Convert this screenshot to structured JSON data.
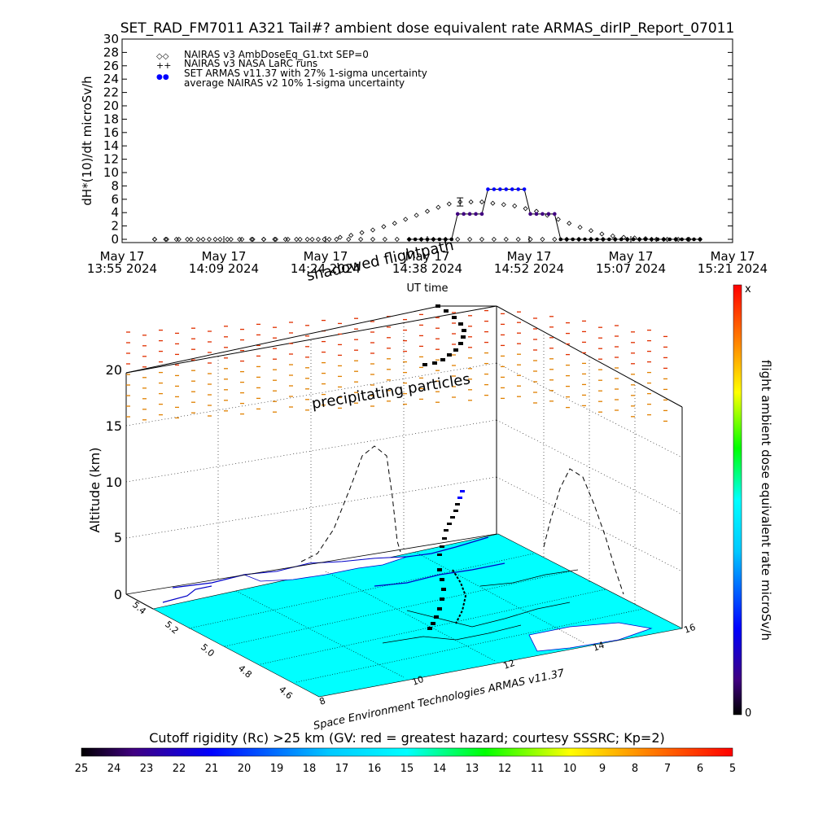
{
  "colors": {
    "background": "#ffffff",
    "ink": "#000000",
    "measured": "#0000ff",
    "measured_fill": "#400080",
    "ocean": "#00ffff",
    "precip_high": "#e03000",
    "precip_low": "#e08000"
  },
  "chart_data": [
    {
      "type": "scatter",
      "title": "SET_RAD_FM7011  A321 Tail#? ambient dose equivalent rate ARMAS_dirIP_Report_07011",
      "ylabel": "dH*(10)/dt microSv/h",
      "ylim": [
        0,
        30
      ],
      "y_ticks": [
        "0",
        "2",
        "4",
        "6",
        "8",
        "10",
        "12",
        "14",
        "16",
        "18",
        "20",
        "22",
        "24",
        "26",
        "28",
        "30"
      ],
      "x_tick_labels": [
        {
          "top": "May 17",
          "bottom": "13:55 2024"
        },
        {
          "top": "May 17",
          "bottom": "14:09 2024"
        },
        {
          "top": "May 17",
          "bottom": "14:24 2024"
        },
        {
          "top": "May 17",
          "bottom": "14:38 2024"
        },
        {
          "top": "May 17",
          "bottom": "14:52 2024"
        },
        {
          "top": "May 17",
          "bottom": "15:07 2024"
        },
        {
          "top": "May 17",
          "bottom": "15:21 2024"
        }
      ],
      "xlabel": "UT time",
      "legend": [
        {
          "symbol": "◇◇",
          "label": "NAIRAS v3 AmbDoseEq_G1.txt SEP=0"
        },
        {
          "symbol": "++",
          "label": "NAIRAS v3 NASA LaRC runs"
        },
        {
          "symbol": "●●",
          "label": "SET ARMAS v11.37 with 27% 1-sigma uncertainty"
        },
        {
          "symbol": "",
          "label": "average NAIRAS v2 10% 1-sigma uncertainty"
        }
      ],
      "legend_position": "top-left",
      "series": [
        {
          "name": "NAIRAS v3 AmbDoseEq_G1.txt SEP=0",
          "x": [
            0,
            2,
            4,
            6,
            8,
            10,
            12,
            14,
            16,
            18,
            20,
            22,
            24,
            26,
            28,
            30,
            32,
            34,
            36,
            38,
            40,
            42,
            44,
            46,
            48,
            50,
            52,
            54,
            56,
            58,
            60,
            62,
            64,
            66,
            68,
            70,
            72,
            74,
            76,
            78,
            80,
            82,
            84,
            86,
            88,
            90
          ],
          "y": [
            0,
            0,
            0,
            0,
            0,
            0,
            0,
            0,
            0,
            0,
            0,
            0,
            0,
            0,
            0,
            0,
            0,
            0,
            0,
            0,
            0,
            0,
            0,
            0,
            0,
            0,
            0,
            0,
            0,
            0,
            0,
            0,
            0,
            0,
            0,
            0,
            0,
            0,
            0,
            0,
            0,
            0,
            0,
            0,
            0,
            0
          ]
        },
        {
          "name": "NAIRAS v3 AmbDoseEq_G1.txt SEP=0",
          "x": [
            0,
            1.8,
            3.6,
            5.4,
            7.2,
            9,
            10.8,
            12.6,
            14.4,
            16.2,
            18,
            19.8,
            21.6,
            23.4,
            25.2,
            27,
            28.8,
            30.6,
            32.4,
            34.2,
            36,
            37.8,
            39.6,
            41.4,
            43.2,
            45,
            46.8,
            48.6,
            50.4,
            52.2,
            54,
            55.8,
            57.6,
            59.4,
            61.2,
            63,
            64.8,
            66.6,
            68.4,
            70.2,
            72,
            73.8,
            75.6,
            77.4,
            79.2,
            81,
            82.8,
            84.6,
            86.4,
            88.2
          ],
          "y": [
            0,
            0,
            0,
            0,
            0,
            0,
            0,
            0,
            0,
            0,
            0,
            0,
            0,
            0,
            0,
            0,
            0,
            0.3,
            0.6,
            1,
            1.4,
            1.9,
            2.4,
            3,
            3.6,
            4.2,
            4.8,
            5.3,
            5.6,
            5.6,
            5.6,
            5.4,
            5.2,
            5,
            4.6,
            4.2,
            3.6,
            3,
            2.4,
            1.8,
            1.3,
            0.8,
            0.5,
            0.3,
            0.2,
            0.1,
            0,
            0,
            0,
            0
          ]
        },
        {
          "name": "SET ARMAS v11.37 with 27% 1-sigma uncertainty",
          "x": [
            42,
            43,
            44,
            45,
            46,
            47,
            48,
            49,
            50,
            51,
            52,
            53,
            54,
            55,
            56,
            57,
            58,
            59,
            60,
            61,
            62,
            63,
            64,
            65,
            66,
            67,
            68,
            69,
            70,
            71,
            72,
            73,
            74,
            75,
            76,
            77,
            78,
            79,
            80,
            81,
            82,
            83,
            84,
            85,
            86,
            87,
            88,
            89,
            90
          ],
          "y": [
            0,
            0,
            0,
            0,
            0,
            0,
            0,
            0,
            3.8,
            3.8,
            3.8,
            3.8,
            3.8,
            7.5,
            7.5,
            7.5,
            7.5,
            7.5,
            7.5,
            7.5,
            3.8,
            3.8,
            3.8,
            3.8,
            3.8,
            0,
            0,
            0,
            0,
            0,
            0,
            0,
            0,
            0,
            0,
            0,
            0,
            0,
            0,
            0,
            0,
            0,
            0,
            0,
            0,
            0,
            0,
            0,
            0
          ]
        }
      ]
    },
    {
      "type": "scatter",
      "title": "",
      "zlabel": "Altitude (km)",
      "z_ticks": [
        "0",
        "5",
        "10",
        "15",
        "20"
      ],
      "lat_ticks": [
        "5.4",
        "5.2",
        "5.0",
        "4.8",
        "4.6"
      ],
      "lon_ticks": [
        "8",
        "10",
        "12",
        "14",
        "16"
      ],
      "annotations": [
        "shadowed flightpath",
        "precipitating particles",
        "Space Environment Technologies ARMAS v11.37"
      ],
      "colorbar": {
        "label": "flight ambient dose equivalent rate microSv/h",
        "top_label": "x",
        "bottom_label": "0"
      }
    }
  ],
  "rigidity_bar": {
    "title": "Cutoff rigidity (Rc) >25 km (GV: red = greatest hazard; courtesy SSSRC; Kp=2)",
    "ticks": [
      "25",
      "24",
      "23",
      "22",
      "21",
      "20",
      "19",
      "18",
      "17",
      "16",
      "15",
      "14",
      "13",
      "12",
      "11",
      "10",
      "9",
      "8",
      "7",
      "6",
      "5"
    ]
  }
}
